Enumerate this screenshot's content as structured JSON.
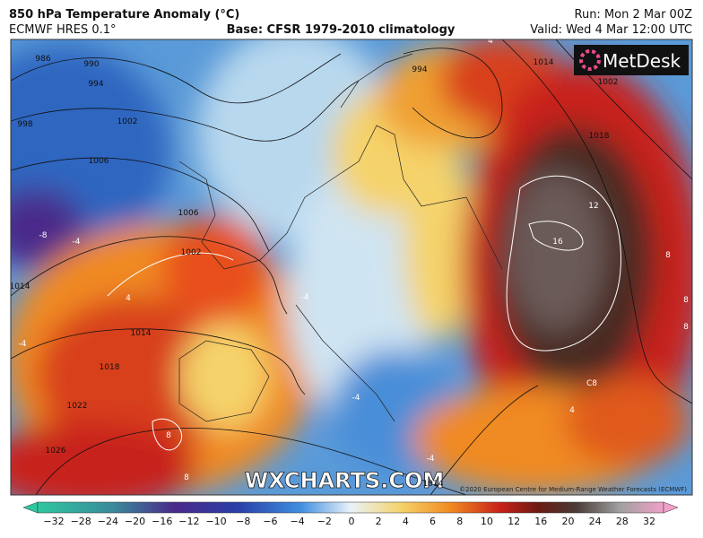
{
  "header": {
    "title": "850 hPa Temperature Anomaly (°C)",
    "model": "ECMWF HRES 0.1°",
    "base": "Base: CFSR 1979-2010 climatology",
    "run": "Run: Mon 2 Mar 00Z",
    "valid": "Valid: Wed 4 Mar 12:00 UTC"
  },
  "logo": "MetDesk",
  "watermark": "WXCHARTS.COM",
  "copyright": "©2020 European Centre for Medium-Range Weather Forecasts (ECMWF)",
  "isobar_labels": [
    "986",
    "990",
    "994",
    "998",
    "1002",
    "1006",
    "1006",
    "1002",
    "1014",
    "1014",
    "1018",
    "1022",
    "1026",
    "1014",
    "994",
    "1014",
    "1002",
    "1018"
  ],
  "anomaly_labels": [
    "-8",
    "-4",
    "-4",
    "4",
    "-4",
    "12",
    "16",
    "8",
    "8",
    "8",
    "C8",
    "8",
    "8",
    "-4",
    "-4",
    "4",
    "4"
  ],
  "colorbar": {
    "labels": [
      "−32",
      "−28",
      "−24",
      "−20",
      "−16",
      "−12",
      "−10",
      "−8",
      "−6",
      "−4",
      "−2",
      "0",
      "2",
      "4",
      "6",
      "8",
      "10",
      "12",
      "16",
      "20",
      "24",
      "28",
      "32"
    ]
  }
}
